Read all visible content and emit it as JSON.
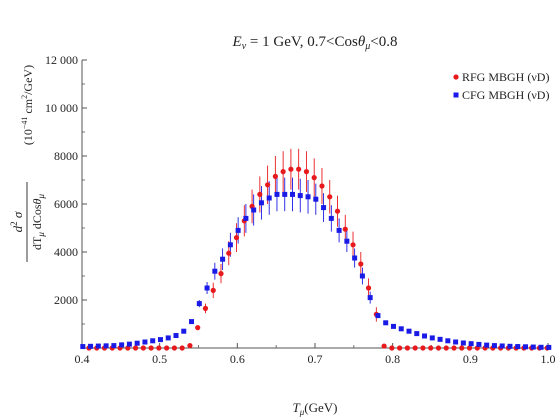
{
  "chart_data": {
    "type": "scatter",
    "title": "E_ν = 1 GeV, 0.7<Cosθ_μ<0.8",
    "xlabel": "T_μ(GeV)",
    "ylabel": "d²σ / dT_μ dCosθ_μ (10⁻⁴¹ cm²/GeV)",
    "xlim": [
      0.4,
      1.0
    ],
    "ylim": [
      0,
      12000
    ],
    "x_ticks": [
      "0.4",
      "0.5",
      "0.6",
      "0.7",
      "0.8",
      "0.9",
      "1.0"
    ],
    "y_ticks": [
      "2000",
      "4000",
      "6000",
      "8000",
      "10 000",
      "12 000"
    ],
    "grid": false,
    "legend_position": "top-right",
    "series": [
      {
        "name": "RFG MBGH (νD)",
        "color": "#e8191c",
        "marker": "circle",
        "x": [
          0.41,
          0.42,
          0.43,
          0.44,
          0.45,
          0.46,
          0.47,
          0.48,
          0.49,
          0.5,
          0.51,
          0.52,
          0.53,
          0.54,
          0.55,
          0.56,
          0.57,
          0.58,
          0.59,
          0.6,
          0.61,
          0.62,
          0.63,
          0.64,
          0.65,
          0.66,
          0.67,
          0.68,
          0.69,
          0.7,
          0.71,
          0.72,
          0.73,
          0.74,
          0.75,
          0.76,
          0.77,
          0.78,
          0.79,
          0.8,
          0.81,
          0.82,
          0.83,
          0.84,
          0.85,
          0.86,
          0.87,
          0.88,
          0.89,
          0.9,
          0.91,
          0.92,
          0.93,
          0.94,
          0.95,
          0.96,
          0.97,
          0.98,
          0.99,
          1.0
        ],
        "y": [
          0,
          0,
          0,
          0,
          0,
          0,
          0,
          0,
          0,
          0,
          0,
          0,
          0,
          100,
          850,
          1650,
          2400,
          3100,
          3950,
          4600,
          5300,
          5900,
          6400,
          6800,
          7150,
          7350,
          7450,
          7450,
          7350,
          7100,
          6750,
          6300,
          5700,
          4950,
          4300,
          3500,
          2500,
          1400,
          80,
          0,
          0,
          0,
          0,
          0,
          0,
          0,
          0,
          0,
          0,
          0,
          0,
          0,
          0,
          0,
          0,
          0,
          0,
          0,
          0,
          0
        ],
        "error": [
          0,
          0,
          0,
          0,
          0,
          0,
          0,
          0,
          0,
          0,
          0,
          0,
          0,
          0,
          100,
          200,
          320,
          400,
          500,
          600,
          650,
          700,
          750,
          800,
          850,
          850,
          850,
          850,
          850,
          800,
          750,
          700,
          650,
          600,
          550,
          500,
          400,
          300,
          0,
          0,
          0,
          0,
          0,
          0,
          0,
          0,
          0,
          0,
          0,
          0,
          0,
          0,
          0,
          0,
          0,
          0,
          0,
          0,
          0,
          0
        ]
      },
      {
        "name": "CFG MBGH (νD)",
        "color": "#1a1ae6",
        "marker": "square",
        "x": [
          0.4,
          0.41,
          0.42,
          0.43,
          0.44,
          0.45,
          0.46,
          0.47,
          0.48,
          0.49,
          0.5,
          0.51,
          0.52,
          0.53,
          0.54,
          0.55,
          0.56,
          0.57,
          0.58,
          0.59,
          0.6,
          0.61,
          0.62,
          0.63,
          0.64,
          0.65,
          0.66,
          0.67,
          0.68,
          0.69,
          0.7,
          0.71,
          0.72,
          0.73,
          0.74,
          0.75,
          0.76,
          0.77,
          0.78,
          0.79,
          0.8,
          0.81,
          0.82,
          0.83,
          0.84,
          0.85,
          0.86,
          0.87,
          0.88,
          0.89,
          0.9,
          0.91,
          0.92,
          0.93,
          0.94,
          0.95,
          0.96,
          0.97,
          0.98,
          0.99,
          1.0
        ],
        "y": [
          60,
          70,
          80,
          90,
          100,
          130,
          160,
          200,
          250,
          300,
          350,
          420,
          520,
          700,
          1100,
          1850,
          2500,
          3200,
          3700,
          4300,
          4900,
          5400,
          5750,
          6050,
          6250,
          6400,
          6400,
          6400,
          6350,
          6300,
          6200,
          5850,
          5400,
          4900,
          4450,
          3750,
          3000,
          2100,
          1350,
          1050,
          900,
          800,
          700,
          600,
          500,
          420,
          360,
          300,
          250,
          210,
          180,
          150,
          120,
          100,
          85,
          70,
          60,
          50,
          40,
          30,
          25
        ],
        "error": [
          0,
          0,
          0,
          0,
          0,
          0,
          0,
          0,
          0,
          0,
          0,
          0,
          0,
          0,
          0,
          150,
          250,
          350,
          450,
          500,
          550,
          600,
          650,
          700,
          700,
          700,
          700,
          700,
          700,
          700,
          650,
          600,
          550,
          500,
          450,
          400,
          350,
          250,
          0,
          0,
          0,
          0,
          0,
          0,
          0,
          0,
          0,
          0,
          0,
          0,
          0,
          0,
          0,
          0,
          0,
          0,
          0,
          0,
          0,
          0,
          0
        ]
      }
    ]
  }
}
